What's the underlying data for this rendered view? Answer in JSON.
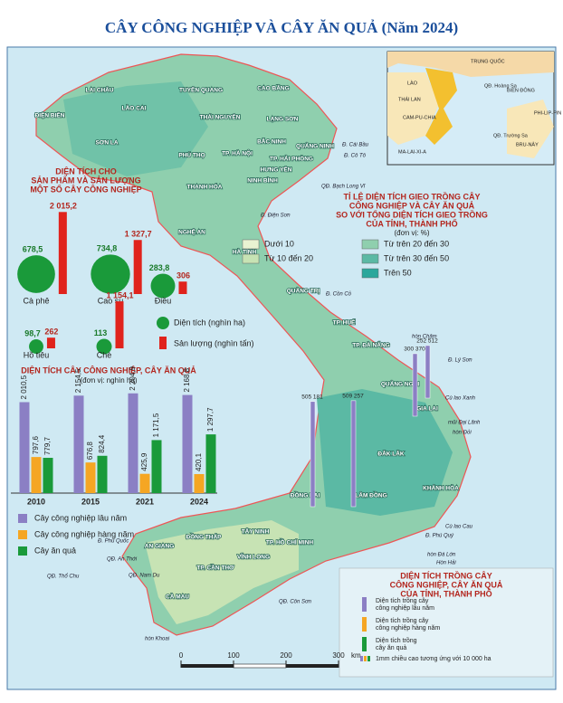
{
  "title": "CÂY CÔNG NGHIỆP VÀ CÂY ĂN QUẢ (Năm 2024)",
  "map": {
    "provinces": [
      "ĐIỆN BIÊN",
      "LAI CHÂU",
      "LÀO CAI",
      "SƠN LA",
      "TUYÊN QUANG",
      "CAO BẰNG",
      "THÁI NGUYÊN",
      "LẠNG SƠN",
      "PHÚ THỌ",
      "TP. HÀ NỘI",
      "BẮC NINH",
      "QUẢNG NINH",
      "TP. HẢI PHÒNG",
      "HƯNG YÊN",
      "NINH BÌNH",
      "THANH HÓA",
      "NGHỆ AN",
      "HÀ TĨNH",
      "QUẢNG TRỊ",
      "TP. HUẾ",
      "TP. ĐÀ NẴNG",
      "QUẢNG NGÃI",
      "GIA LAI",
      "ĐẮK LẮK",
      "KHÁNH HÒA",
      "LÂM ĐỒNG",
      "ĐỒNG NAI",
      "TÂY NINH",
      "TP. HỒ CHÍ MINH",
      "ĐỒNG THÁP",
      "AN GIANG",
      "VĨNH LONG",
      "TP. CẦN THƠ",
      "CÀ MAU"
    ],
    "places": [
      "Đ. Cái Bầu",
      "Đ. Cô Tô",
      "QĐ. Bạch Long Vĩ",
      "Đ. Điện Sơn",
      "Đ. Cồn Cỏ",
      "hòn Chăm",
      "Đ. Lý Sơn",
      "Cù lao Xanh",
      "mũi Đại Lãnh",
      "hòn Đỏi",
      "Cù lao Cau",
      "Đ. Phú Quý",
      "hòn Đá Lớn",
      "Hòn Hải",
      "QĐ. Côn Sơn",
      "Đ. Phú Quốc",
      "QĐ. An Thới",
      "QĐ. Nam Du",
      "QĐ. Thổ Chu",
      "hòn Khoai"
    ],
    "scale": {
      "ticks": [
        0,
        100,
        200,
        300
      ],
      "unit": "km"
    }
  },
  "inset": {
    "labels": [
      "TRUNG QUỐC",
      "LÀO",
      "THÁI LAN",
      "CAM-PU-CHIA",
      "BIỂN ĐÔNG",
      "QĐ. Hoàng Sa",
      "QĐ. Trường Sa",
      "MA-LAI-XI-A",
      "BRU-NÂY",
      "PHI-LIP-PIN"
    ]
  },
  "crops_chart": {
    "title": [
      "DIỆN TÍCH CHO",
      "SẢN PHẨM VÀ SẢN LƯỢNG",
      "MỘT SỐ CÂY CÔNG NGHIỆP"
    ],
    "categories": [
      "Cà phê",
      "Cao su",
      "Điều",
      "Hồ tiêu",
      "Chè"
    ],
    "area": {
      "name": "Diện tích (nghìn ha)",
      "color": "#1a9a3a",
      "values": [
        678.5,
        734.8,
        283.8,
        98.7,
        113
      ],
      "value_labels": [
        "678,5",
        "734,8",
        "283,8",
        "98,7",
        "113"
      ]
    },
    "production": {
      "name": "Sản lượng (nghìn tấn)",
      "color": "#e0231c",
      "values": [
        2015.2,
        1327.7,
        306,
        262,
        1154.1
      ],
      "value_labels": [
        "2 015,2",
        "1 327,7",
        "306",
        "262",
        "1 154,1"
      ]
    }
  },
  "chart_data": {
    "type": "bar",
    "title": "DIỆN TÍCH CÂY CÔNG NGHIỆP, CÂY ĂN QUẢ",
    "subtitle": "(đơn vị: nghìn ha)",
    "categories": [
      "2010",
      "2015",
      "2021",
      "2024"
    ],
    "series": [
      {
        "name": "Cây công nghiệp lâu năm",
        "color": "#8b7fc4",
        "values": [
          2010.5,
          2154.5,
          2204.9,
          2168.8
        ],
        "value_labels": [
          "2 010,5",
          "2 154,5",
          "2 204,9",
          "2 168,8"
        ]
      },
      {
        "name": "Cây công nghiệp hàng năm",
        "color": "#f5a623",
        "values": [
          797.6,
          676.8,
          425.9,
          420.1
        ],
        "value_labels": [
          "797,6",
          "676,8",
          "425,9",
          "420,1"
        ]
      },
      {
        "name": "Cây ăn quả",
        "color": "#1a9a3a",
        "values": [
          779.7,
          824.4,
          1171.5,
          1297.7
        ],
        "value_labels": [
          "779,7",
          "824,4",
          "1 171,5",
          "1 297,7"
        ]
      }
    ]
  },
  "ratio_legend": {
    "title": [
      "TỈ LỆ DIỆN TÍCH GIEO TRỒNG CÂY",
      "CÔNG NGHIỆP VÀ CÂY ĂN QUẢ",
      "SO VỚI TỔNG DIỆN TÍCH GIEO TRỒNG",
      "CỦA TỈNH, THÀNH PHỐ"
    ],
    "unit": "(đơn vị: %)",
    "classes": [
      {
        "label": "Dưới 10",
        "color": "#e9f3d2"
      },
      {
        "label": "Từ 10 đến 20",
        "color": "#c7e3b4"
      },
      {
        "label": "Từ trên 20 đến 30",
        "color": "#8fcfae"
      },
      {
        "label": "Từ trên 30 đến 50",
        "color": "#5bb9a4"
      },
      {
        "label": "Trên 50",
        "color": "#2aa79b"
      }
    ]
  },
  "area_legend": {
    "title": [
      "DIỆN TÍCH TRỒNG CÂY",
      "CÔNG NGHIỆP, CÂY ĂN QUẢ",
      "CỦA TỈNH, THÀNH PHỐ"
    ],
    "items": [
      [
        "Diện tích trồng cây",
        "công nghiệp lâu năm"
      ],
      [
        "Diện tích trồng cây",
        "công nghiệp hàng năm"
      ],
      [
        "Diện tích trồng",
        "cây ăn quả"
      ]
    ],
    "note": "1mm chiều cao tương ứng với 10 000 ha"
  },
  "map_totals": {
    "values": [
      505181,
      509257,
      252512,
      300370
    ],
    "value_labels": [
      "505 181",
      "509 257",
      "252 512",
      "300 370"
    ]
  }
}
